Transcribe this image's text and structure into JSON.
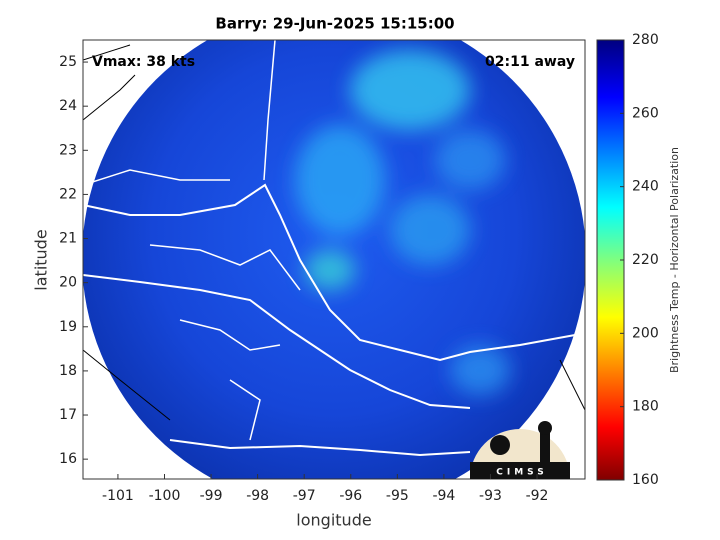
{
  "chart_data": {
    "type": "map",
    "title": "Barry: 29-Jun-2025 15:15:00",
    "annotations": [
      "Vmax: 38 kts",
      "02:11 away"
    ],
    "x_label": "longitude",
    "y_label": "latitude",
    "xlim": [
      -101.75,
      -90.97
    ],
    "ylim": [
      15.55,
      25.5
    ],
    "xticks": [
      -101,
      -100,
      -99,
      -98,
      -97,
      -96,
      -95,
      -94,
      -93,
      -92
    ],
    "yticks": [
      16,
      17,
      18,
      19,
      20,
      21,
      22,
      23,
      24,
      25
    ],
    "colorbar": {
      "label": "Brightness Temp - Horizontal Polarization",
      "lim": [
        160,
        280
      ],
      "ticks": [
        160,
        180,
        200,
        220,
        240,
        260,
        280
      ]
    },
    "logo": "CIMSS"
  }
}
